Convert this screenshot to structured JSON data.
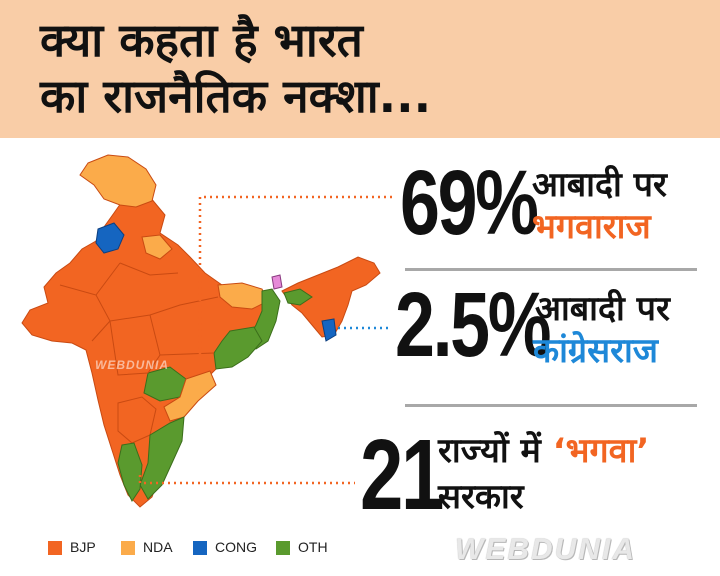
{
  "title": {
    "line1": "क्या कहता है भारत",
    "line2": "का राजनैतिक नक्शा..."
  },
  "stats": [
    {
      "value": "69%",
      "label_line1": "आबादी पर",
      "label_line2": "भगवाराज"
    },
    {
      "value": "2.5%",
      "label_line1": "आबादी पर",
      "label_line2": "कांग्रेसराज"
    },
    {
      "value": "21",
      "label_line1_prefix": "राज्यों में",
      "label_line1_highlight": "‘भगवा’",
      "label_line2": "सरकार"
    }
  ],
  "legend": [
    {
      "label": "BJP",
      "color": "#f26522"
    },
    {
      "label": "NDA",
      "color": "#fbab4a"
    },
    {
      "label": "CONG",
      "color": "#1565c0"
    },
    {
      "label": "OTH",
      "color": "#5a9a2e"
    }
  ],
  "watermark": "WEBDUNIA",
  "map_watermark": "WEBDUNIA",
  "colors": {
    "header_bg": "#f9cda7",
    "bjp": "#f26522",
    "nda": "#fbab4a",
    "cong": "#1565c0",
    "oth": "#5a9a2e",
    "leader_line": "#f26522",
    "cong_leader_line": "#1e88d8"
  }
}
